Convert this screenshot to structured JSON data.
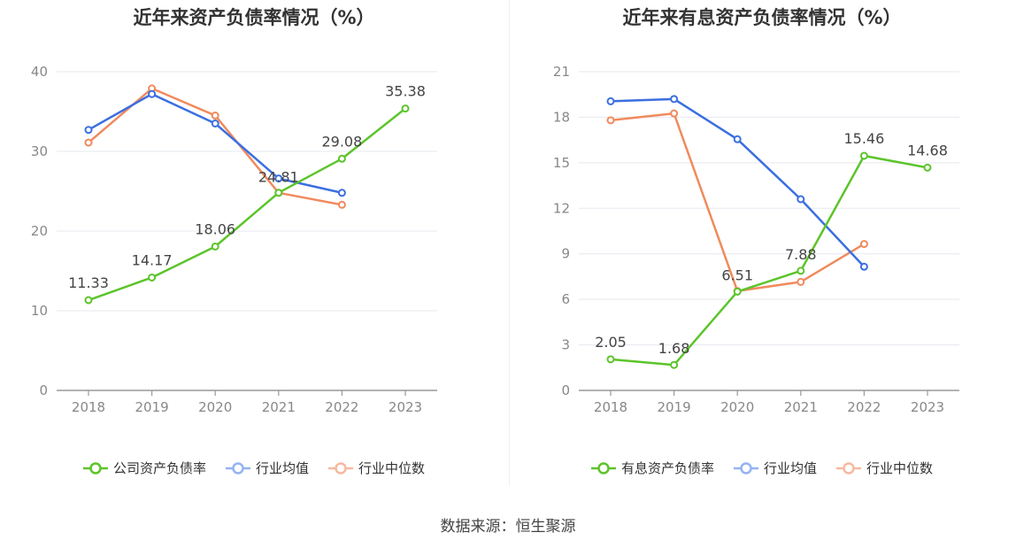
{
  "charts": [
    {
      "title": "近年来资产负债率情况（%）",
      "legend": [
        {
          "label": "公司资产负债率",
          "color": "#5cc42b"
        },
        {
          "label": "行业均值",
          "color": "#3b6fe0"
        },
        {
          "label": "行业中位数",
          "color": "#f08a5d"
        }
      ]
    },
    {
      "title": "近年来有息资产负债率情况（%）",
      "legend": [
        {
          "label": "有息资产负债率",
          "color": "#5cc42b"
        },
        {
          "label": "行业均值",
          "color": "#3b6fe0"
        },
        {
          "label": "行业中位数",
          "color": "#f08a5d"
        }
      ]
    }
  ],
  "source": "数据来源：恒生聚源",
  "chart_data": [
    {
      "type": "line",
      "title": "近年来资产负债率情况（%）",
      "categories": [
        "2018",
        "2019",
        "2020",
        "2021",
        "2022",
        "2023"
      ],
      "ylim": [
        0,
        40
      ],
      "yticks": [
        0,
        10,
        20,
        30,
        40
      ],
      "grid": true,
      "legend_position": "bottom",
      "series": [
        {
          "name": "公司资产负债率",
          "color": "#5cc42b",
          "values": [
            11.33,
            14.17,
            18.06,
            24.81,
            29.08,
            35.38
          ],
          "labels": [
            "11.33",
            "14.17",
            "18.06",
            "24.81",
            "29.08",
            "35.38"
          ]
        },
        {
          "name": "行业均值",
          "color": "#3b6fe0",
          "values": [
            32.7,
            37.2,
            33.5,
            26.6,
            24.8,
            null
          ]
        },
        {
          "name": "行业中位数",
          "color": "#f08a5d",
          "values": [
            31.1,
            37.9,
            34.5,
            24.8,
            23.3,
            null
          ]
        }
      ]
    },
    {
      "type": "line",
      "title": "近年来有息资产负债率情况（%）",
      "categories": [
        "2018",
        "2019",
        "2020",
        "2021",
        "2022",
        "2023"
      ],
      "ylim": [
        0,
        21
      ],
      "yticks": [
        0,
        3,
        6,
        9,
        12,
        15,
        18,
        21
      ],
      "grid": true,
      "legend_position": "bottom",
      "series": [
        {
          "name": "有息资产负债率",
          "color": "#5cc42b",
          "values": [
            2.05,
            1.68,
            6.51,
            7.88,
            15.46,
            14.68
          ],
          "labels": [
            "2.05",
            "1.68",
            "6.51",
            "7.88",
            "15.46",
            "14.68"
          ]
        },
        {
          "name": "行业均值",
          "color": "#3b6fe0",
          "values": [
            19.05,
            19.2,
            16.55,
            12.6,
            8.15,
            null
          ]
        },
        {
          "name": "行业中位数",
          "color": "#f08a5d",
          "values": [
            17.8,
            18.25,
            6.55,
            7.15,
            9.65,
            null
          ]
        }
      ]
    }
  ]
}
